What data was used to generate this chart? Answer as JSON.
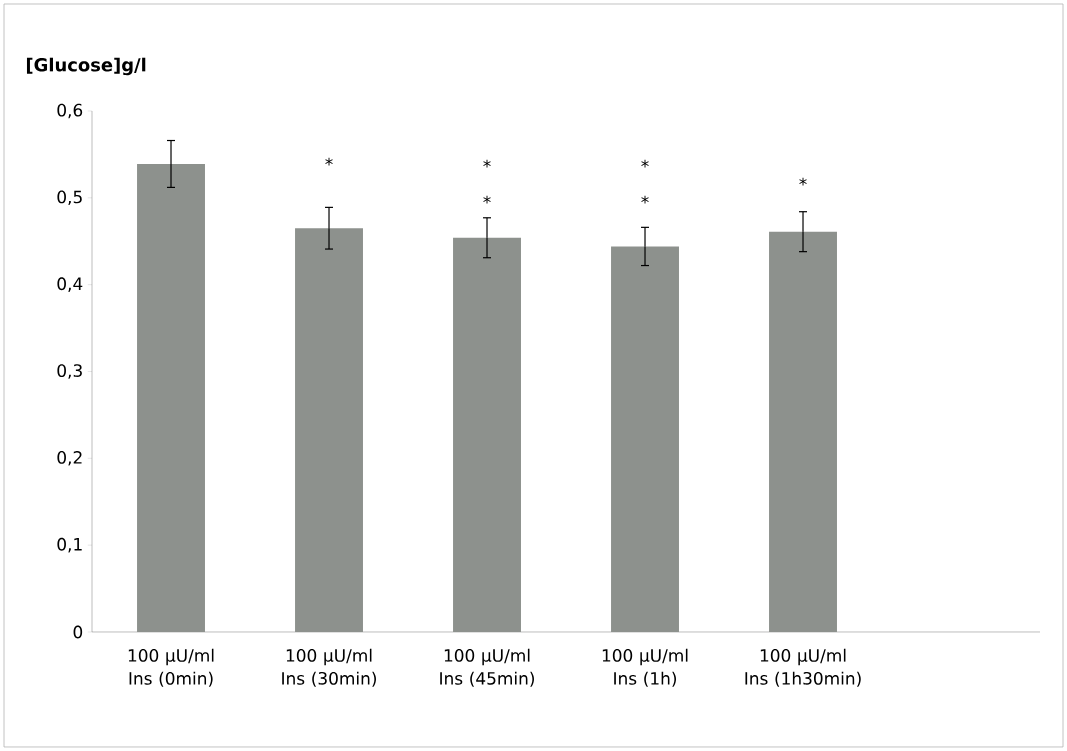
{
  "chart_data": {
    "type": "bar",
    "ylabel": "[Glucose]g/l",
    "categories": [
      "100 µU/ml Ins (0min)",
      "100 µU/ml Ins (30min)",
      "100 µU/ml Ins (45min)",
      "100 µU/ml Ins (1h)",
      "100 µU/ml Ins (1h30min)",
      null
    ],
    "values": [
      0.539,
      0.465,
      0.454,
      0.444,
      0.461,
      null
    ],
    "errors": [
      0.027,
      0.024,
      0.023,
      0.022,
      0.023,
      null
    ],
    "color": "#8d918d",
    "ylim": [
      0,
      0.6
    ],
    "yticks": [
      {
        "value": 0,
        "label": "0"
      },
      {
        "value": 0.1,
        "label": "0,1"
      },
      {
        "value": 0.2,
        "label": "0,2"
      },
      {
        "value": 0.3,
        "label": "0,3"
      },
      {
        "value": 0.4,
        "label": "0,4"
      },
      {
        "value": 0.5,
        "label": "0,5"
      },
      {
        "value": 0.6,
        "label": "0,6"
      }
    ],
    "grid": false,
    "annotations": [
      "*",
      "*",
      "*",
      "*",
      "*",
      "*"
    ]
  }
}
